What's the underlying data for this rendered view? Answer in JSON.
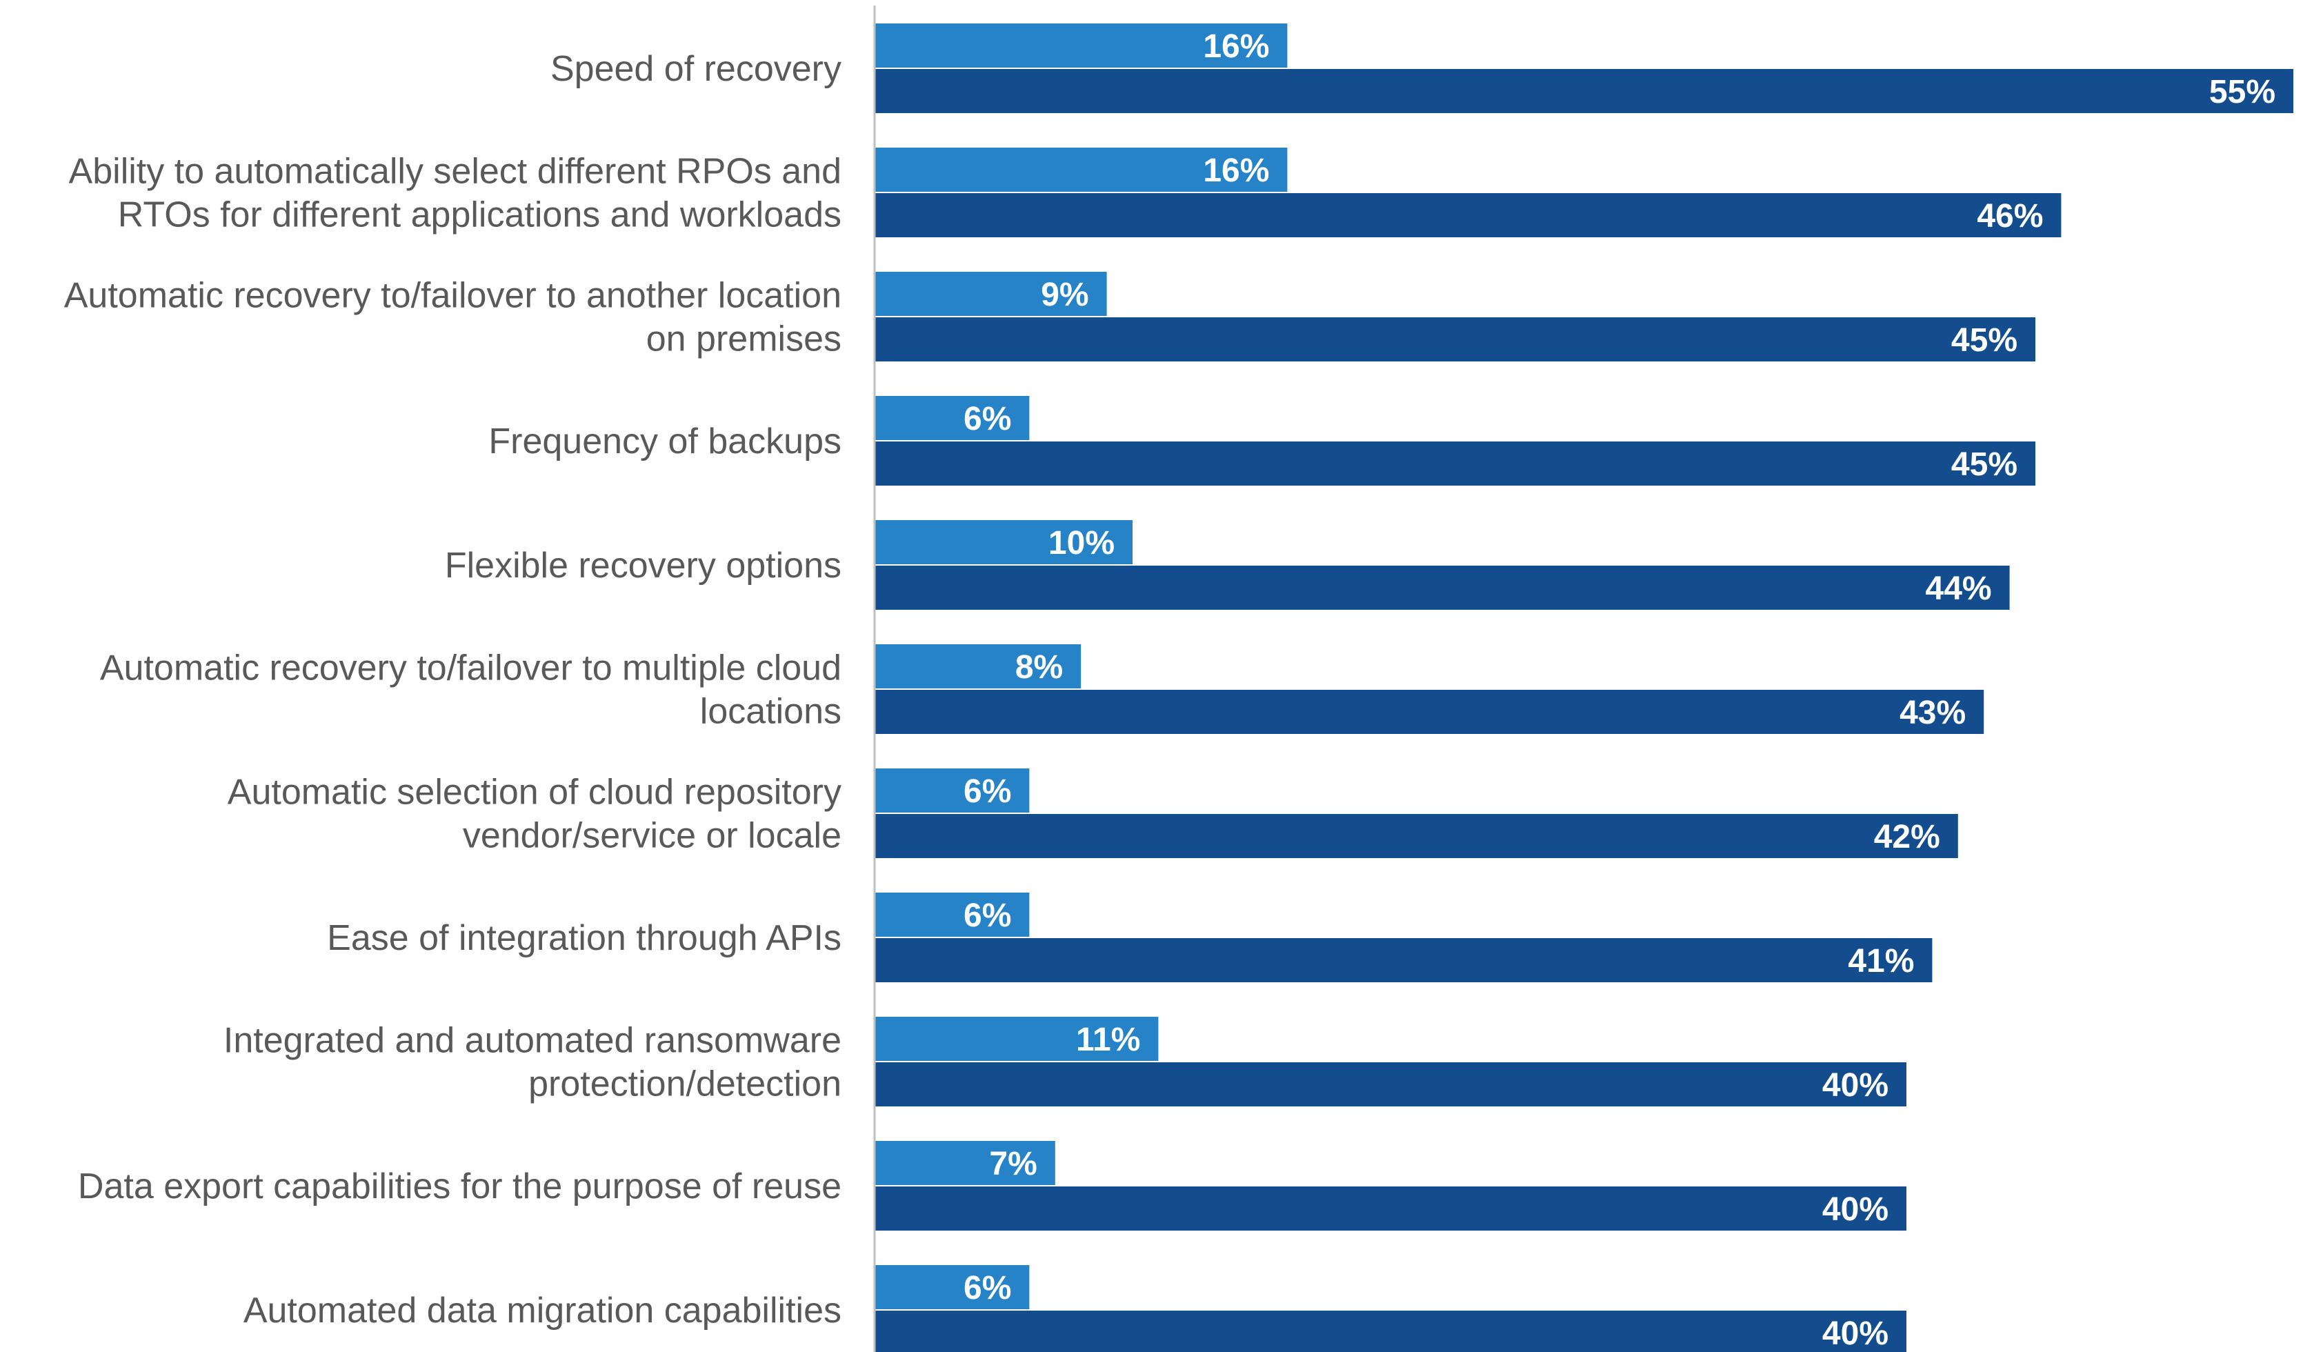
{
  "chart_data": {
    "type": "bar",
    "orientation": "horizontal",
    "categories": [
      [
        "Speed of recovery"
      ],
      [
        "Ability to automatically select different RPOs and",
        "RTOs for different applications and workloads"
      ],
      [
        "Automatic recovery to/failover to another location",
        "on premises"
      ],
      [
        "Frequency of backups"
      ],
      [
        "Flexible recovery options"
      ],
      [
        "Automatic recovery to/failover to multiple cloud",
        "locations"
      ],
      [
        "Automatic selection of cloud repository",
        "vendor/service or locale"
      ],
      [
        "Ease of integration through APIs"
      ],
      [
        "Integrated and automated ransomware",
        "protection/detection"
      ],
      [
        "Data export capabilities for the purpose of reuse"
      ],
      [
        "Automated data migration capabilities"
      ]
    ],
    "series": [
      {
        "color": "#2783c7",
        "values": [
          16,
          16,
          9,
          6,
          10,
          8,
          6,
          6,
          11,
          7,
          6
        ],
        "labels": [
          "16%",
          "16%",
          "9%",
          "6%",
          "10%",
          "8%",
          "6%",
          "6%",
          "11%",
          "7%",
          "6%"
        ]
      },
      {
        "color": "#134d8e",
        "values": [
          55,
          46,
          45,
          45,
          44,
          43,
          42,
          41,
          40,
          40,
          40
        ],
        "labels": [
          "55%",
          "46%",
          "45%",
          "45%",
          "44%",
          "43%",
          "42%",
          "41%",
          "40%",
          "40%",
          "40%"
        ]
      }
    ],
    "xlim": [
      0,
      55
    ],
    "axis_color": "#bfbfbf",
    "grid": false,
    "legend": "none"
  }
}
